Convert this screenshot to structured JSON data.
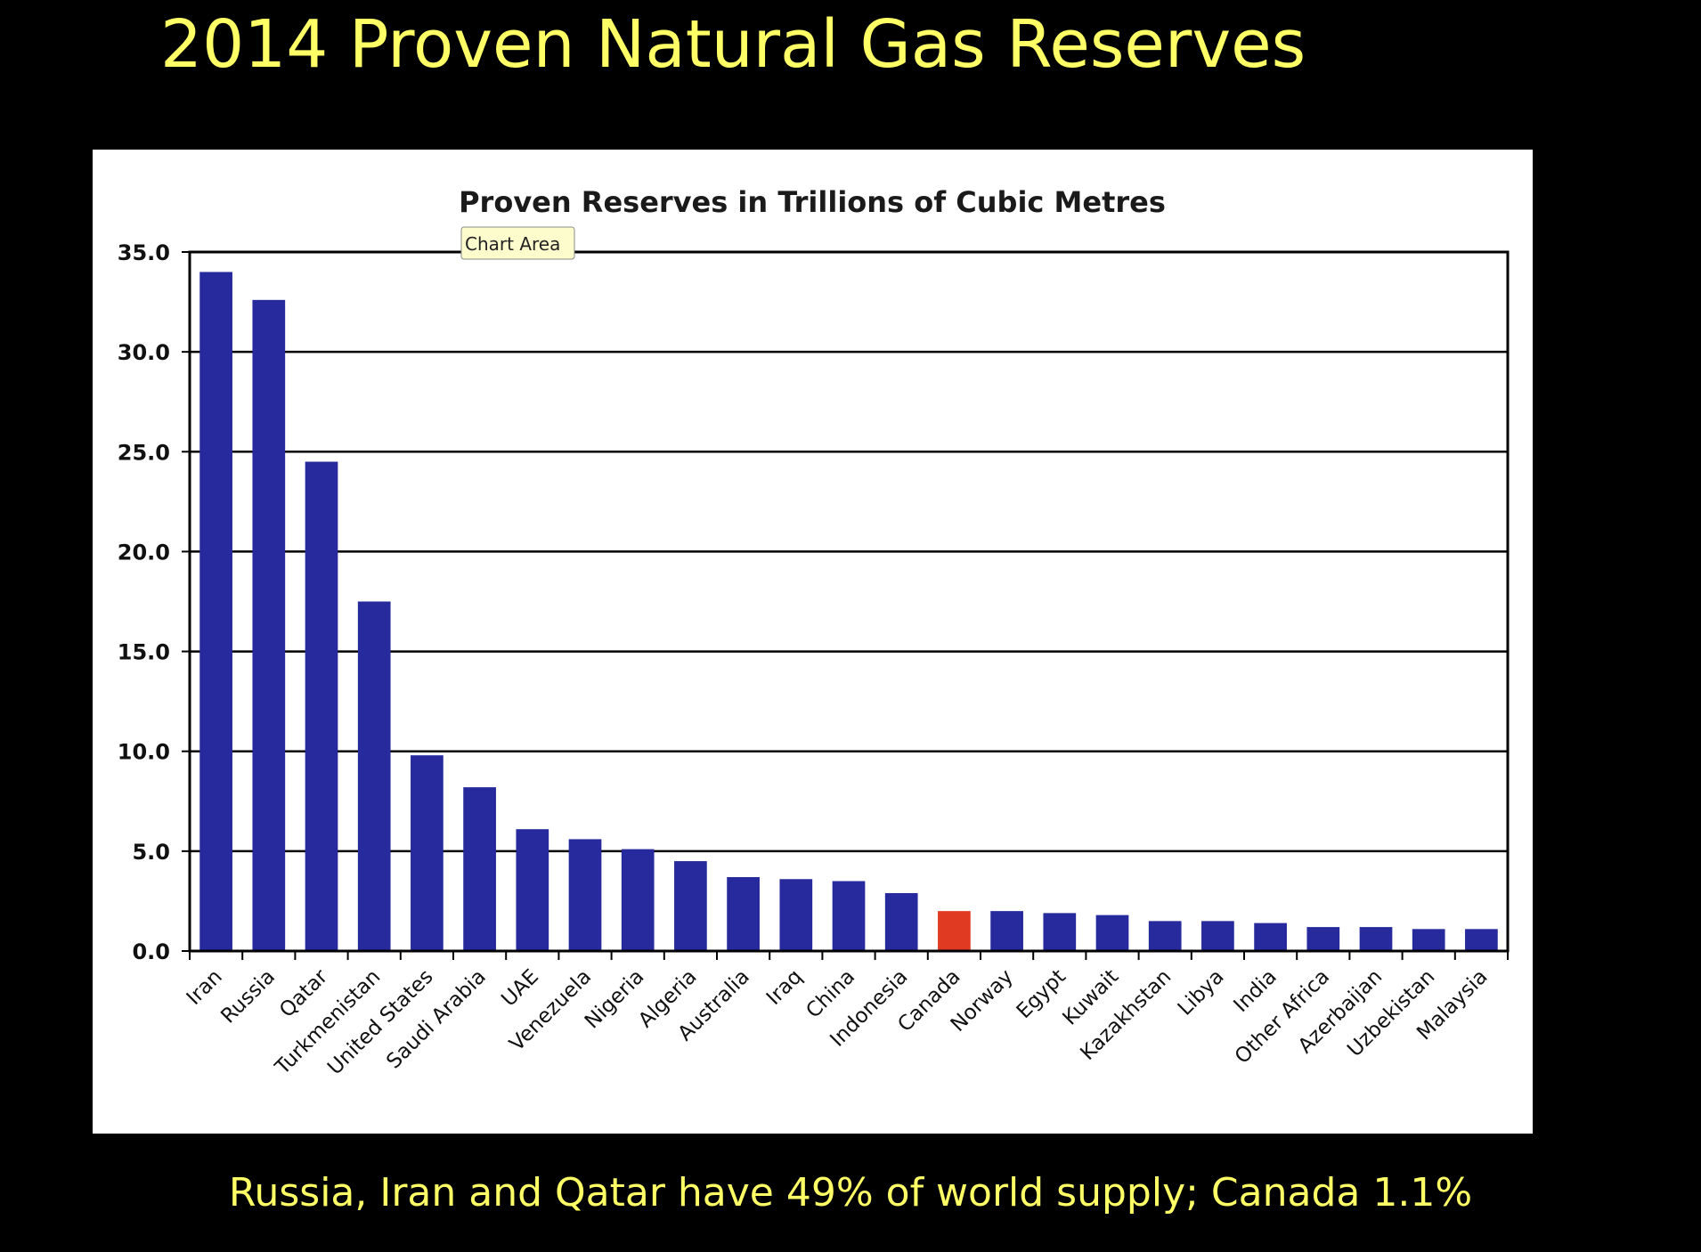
{
  "slide": {
    "title": "2014 Proven Natural Gas Reserves",
    "caption": "Russia, Iran and Qatar have 49% of world supply; Canada 1.1%"
  },
  "tooltip": {
    "text": "Chart Area"
  },
  "colors": {
    "background": "#000000",
    "title_text": "#ffff66",
    "bar": "#262a9c",
    "highlight_bar": "#e03a22",
    "panel": "#ffffff"
  },
  "chart_data": {
    "type": "bar",
    "title": "Proven Reserves in Trillions of Cubic Metres",
    "xlabel": "",
    "ylabel": "",
    "ylim": [
      0,
      35
    ],
    "yticks": [
      "0.0",
      "5.0",
      "10.0",
      "15.0",
      "20.0",
      "25.0",
      "30.0",
      "35.0"
    ],
    "grid": true,
    "legend": "none",
    "categories": [
      "Iran",
      "Russia",
      "Qatar",
      "Turkmenistan",
      "United States",
      "Saudi Arabia",
      "UAE",
      "Venezuela",
      "Nigeria",
      "Algeria",
      "Australia",
      "Iraq",
      "China",
      "Indonesia",
      "Canada",
      "Norway",
      "Egypt",
      "Kuwait",
      "Kazakhstan",
      "Libya",
      "India",
      "Other Africa",
      "Azerbaijan",
      "Uzbekistan",
      "Malaysia"
    ],
    "values": [
      34.0,
      32.6,
      24.5,
      17.5,
      9.8,
      8.2,
      6.1,
      5.6,
      5.1,
      4.5,
      3.7,
      3.6,
      3.5,
      2.9,
      2.0,
      2.0,
      1.9,
      1.8,
      1.5,
      1.5,
      1.4,
      1.2,
      1.2,
      1.1,
      1.1
    ],
    "highlight": "Canada"
  }
}
